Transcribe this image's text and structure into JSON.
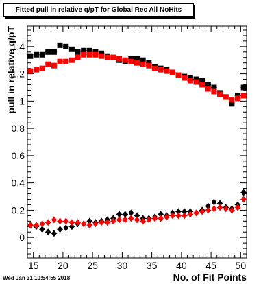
{
  "timestamp": "Wed Jan 31 10:54:55 2018",
  "chart_data": {
    "type": "scatter",
    "title": "Fitted pull in relative q/pT for Global Rec All NoHits",
    "xlabel": "No. of Fit Points",
    "ylabel": "pull in relative q/pT",
    "xlim": [
      14,
      51
    ],
    "ylim": [
      -0.15,
      1.55
    ],
    "xticks": [
      15,
      20,
      25,
      30,
      35,
      40,
      45,
      50
    ],
    "yticks": [
      0,
      0.2,
      0.4,
      0.6,
      0.8,
      1,
      1.2,
      1.4
    ],
    "ytick_labels": [
      "0",
      "0.2",
      "0.4",
      "0.6",
      "0.8",
      "1",
      "1.2",
      "1.4"
    ],
    "grid": false,
    "colors": {
      "black_series": "#000000",
      "red_series": "#ff0000"
    },
    "series": [
      {
        "marker": "square",
        "color": "black",
        "x": [
          14.5,
          15.5,
          16.5,
          17.5,
          18.5,
          19.5,
          20.5,
          21.5,
          22.5,
          23.5,
          24.5,
          25.5,
          26.5,
          27.5,
          28.5,
          29.5,
          30.5,
          31.5,
          32.5,
          33.5,
          34.5,
          35.5,
          36.5,
          37.5,
          38.5,
          39.5,
          40.5,
          41.5,
          42.5,
          43.5,
          44.5,
          45.5,
          46.5,
          47.5,
          48.5,
          49.5,
          50.5
        ],
        "y": [
          1.33,
          1.34,
          1.34,
          1.36,
          1.36,
          1.41,
          1.4,
          1.38,
          1.36,
          1.37,
          1.37,
          1.36,
          1.35,
          1.33,
          1.32,
          1.3,
          1.29,
          1.31,
          1.31,
          1.3,
          1.28,
          1.25,
          1.24,
          1.23,
          1.21,
          1.19,
          1.18,
          1.17,
          1.16,
          1.15,
          1.12,
          1.1,
          1.06,
          1.03,
          0.98,
          1.04,
          1.1
        ]
      },
      {
        "marker": "square",
        "color": "red",
        "x": [
          14.5,
          15.5,
          16.5,
          17.5,
          18.5,
          19.5,
          20.5,
          21.5,
          22.5,
          23.5,
          24.5,
          25.5,
          26.5,
          27.5,
          28.5,
          29.5,
          30.5,
          31.5,
          32.5,
          33.5,
          34.5,
          35.5,
          36.5,
          37.5,
          38.5,
          39.5,
          40.5,
          41.5,
          42.5,
          43.5,
          44.5,
          45.5,
          46.5,
          47.5,
          48.5,
          49.5,
          50.5
        ],
        "y": [
          1.22,
          1.23,
          1.24,
          1.27,
          1.26,
          1.29,
          1.29,
          1.3,
          1.32,
          1.34,
          1.34,
          1.34,
          1.33,
          1.32,
          1.32,
          1.31,
          1.3,
          1.29,
          1.28,
          1.27,
          1.26,
          1.24,
          1.23,
          1.22,
          1.21,
          1.19,
          1.17,
          1.15,
          1.14,
          1.12,
          1.09,
          1.07,
          1.05,
          1.03,
          1.01,
          1.02,
          1.04
        ]
      },
      {
        "marker": "diamond",
        "color": "black",
        "x": [
          14.5,
          15.5,
          16.5,
          17.5,
          18.5,
          19.5,
          20.5,
          21.5,
          22.5,
          23.5,
          24.5,
          25.5,
          26.5,
          27.5,
          28.5,
          29.5,
          30.5,
          31.5,
          32.5,
          33.5,
          34.5,
          35.5,
          36.5,
          37.5,
          38.5,
          39.5,
          40.5,
          41.5,
          42.5,
          43.5,
          44.5,
          45.5,
          46.5,
          47.5,
          48.5,
          49.5,
          50.5
        ],
        "y": [
          0.09,
          0.08,
          0.06,
          0.04,
          0.03,
          0.06,
          0.07,
          0.08,
          0.1,
          0.1,
          0.12,
          0.11,
          0.12,
          0.13,
          0.14,
          0.17,
          0.17,
          0.18,
          0.16,
          0.14,
          0.14,
          0.15,
          0.17,
          0.16,
          0.18,
          0.19,
          0.19,
          0.19,
          0.18,
          0.2,
          0.23,
          0.26,
          0.25,
          0.22,
          0.21,
          0.24,
          0.33
        ]
      },
      {
        "marker": "diamond",
        "color": "red",
        "x": [
          14.5,
          15.5,
          16.5,
          17.5,
          18.5,
          19.5,
          20.5,
          21.5,
          22.5,
          23.5,
          24.5,
          25.5,
          26.5,
          27.5,
          28.5,
          29.5,
          30.5,
          31.5,
          32.5,
          33.5,
          34.5,
          35.5,
          36.5,
          37.5,
          38.5,
          39.5,
          40.5,
          41.5,
          42.5,
          43.5,
          44.5,
          45.5,
          46.5,
          47.5,
          48.5,
          49.5,
          50.5
        ],
        "y": [
          0.09,
          0.09,
          0.1,
          0.11,
          0.13,
          0.12,
          0.12,
          0.11,
          0.11,
          0.1,
          0.09,
          0.1,
          0.11,
          0.11,
          0.12,
          0.13,
          0.13,
          0.14,
          0.13,
          0.12,
          0.13,
          0.14,
          0.14,
          0.15,
          0.16,
          0.16,
          0.16,
          0.17,
          0.18,
          0.19,
          0.2,
          0.21,
          0.22,
          0.21,
          0.2,
          0.22,
          0.28
        ]
      }
    ]
  }
}
